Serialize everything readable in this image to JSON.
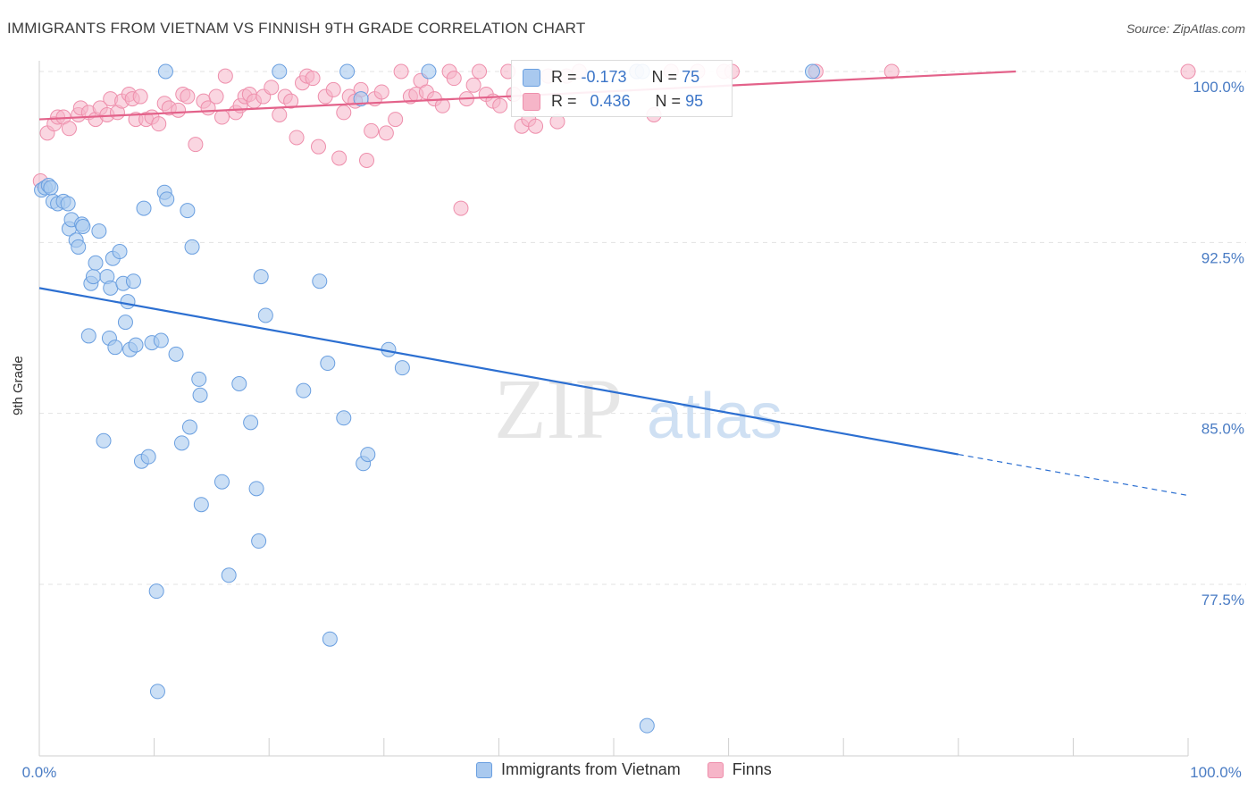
{
  "title": "IMMIGRANTS FROM VIETNAM VS FINNISH 9TH GRADE CORRELATION CHART",
  "source": "Source: ZipAtlas.com",
  "watermark": {
    "zip": "ZIP",
    "atlas": "atlas"
  },
  "colors": {
    "blue_fill": "#a9c9ef",
    "blue_stroke": "#6a9fe0",
    "blue_line": "#2c6fd1",
    "pink_fill": "#f6b5c8",
    "pink_stroke": "#ee8fac",
    "pink_line": "#e3628a",
    "tick_label": "#4a7cc4",
    "grid": "#e6e6e6"
  },
  "legend_inset": {
    "rows": [
      {
        "r_label": "R =",
        "r_value": "-0.173",
        "n_label": "N =",
        "n_value": "75"
      },
      {
        "r_label": "R =",
        "r_value": "0.436",
        "n_label": "N =",
        "n_value": "95"
      }
    ]
  },
  "legend_bottom": {
    "blue": "Immigrants from Vietnam",
    "pink": "Finns"
  },
  "chart_data": {
    "type": "scatter",
    "title": "IMMIGRANTS FROM VIETNAM VS FINNISH 9TH GRADE CORRELATION CHART",
    "xlabel": "",
    "ylabel": "9th Grade",
    "xlim": [
      0,
      100
    ],
    "ylim": [
      70.7,
      100.7
    ],
    "x_tick_labels": [
      "0.0%",
      "100.0%"
    ],
    "y_ticks": [
      {
        "value": 100.0,
        "label": "100.0%"
      },
      {
        "value": 92.5,
        "label": "92.5%"
      },
      {
        "value": 85.0,
        "label": "85.0%"
      },
      {
        "value": 77.5,
        "label": "77.5%"
      }
    ],
    "grid": true,
    "legend_position": "top-center",
    "series": [
      {
        "name": "Immigrants from Vietnam",
        "color": "#a9c9ef",
        "trend": {
          "x": [
            0,
            80
          ],
          "y": [
            90.5,
            83.2
          ],
          "dashed_to": [
            100,
            81.4
          ]
        },
        "points": [
          [
            0.2,
            94.8
          ],
          [
            0.5,
            94.9
          ],
          [
            0.8,
            95.0
          ],
          [
            1.0,
            94.9
          ],
          [
            1.2,
            94.3
          ],
          [
            1.6,
            94.2
          ],
          [
            2.1,
            94.3
          ],
          [
            2.5,
            94.2
          ],
          [
            2.6,
            93.1
          ],
          [
            2.8,
            93.5
          ],
          [
            3.2,
            92.6
          ],
          [
            3.4,
            92.3
          ],
          [
            3.7,
            93.3
          ],
          [
            3.8,
            93.2
          ],
          [
            4.3,
            88.4
          ],
          [
            4.5,
            90.7
          ],
          [
            4.7,
            91.0
          ],
          [
            4.9,
            91.6
          ],
          [
            5.2,
            93.0
          ],
          [
            5.6,
            83.8
          ],
          [
            5.9,
            91.0
          ],
          [
            6.1,
            88.3
          ],
          [
            6.2,
            90.5
          ],
          [
            6.4,
            91.8
          ],
          [
            6.6,
            87.9
          ],
          [
            7.0,
            92.1
          ],
          [
            7.3,
            90.7
          ],
          [
            7.5,
            89.0
          ],
          [
            7.7,
            89.9
          ],
          [
            7.9,
            87.8
          ],
          [
            8.2,
            90.8
          ],
          [
            8.4,
            88.0
          ],
          [
            8.9,
            82.9
          ],
          [
            9.1,
            94.0
          ],
          [
            9.5,
            83.1
          ],
          [
            9.8,
            88.1
          ],
          [
            10.2,
            77.2
          ],
          [
            10.3,
            72.8
          ],
          [
            10.6,
            88.2
          ],
          [
            10.9,
            94.7
          ],
          [
            11.0,
            100.0
          ],
          [
            11.1,
            94.4
          ],
          [
            11.9,
            87.6
          ],
          [
            12.4,
            83.7
          ],
          [
            12.9,
            93.9
          ],
          [
            13.1,
            84.4
          ],
          [
            13.3,
            92.3
          ],
          [
            13.9,
            86.5
          ],
          [
            14.0,
            85.8
          ],
          [
            14.1,
            81.0
          ],
          [
            15.9,
            82.0
          ],
          [
            16.5,
            77.9
          ],
          [
            17.4,
            86.3
          ],
          [
            18.4,
            84.6
          ],
          [
            18.9,
            81.7
          ],
          [
            19.1,
            79.4
          ],
          [
            19.3,
            91.0
          ],
          [
            19.7,
            89.3
          ],
          [
            20.9,
            100.0
          ],
          [
            23.0,
            86.0
          ],
          [
            24.4,
            90.8
          ],
          [
            25.1,
            87.2
          ],
          [
            25.3,
            75.1
          ],
          [
            26.5,
            84.8
          ],
          [
            26.8,
            100.0
          ],
          [
            28.0,
            98.8
          ],
          [
            28.2,
            82.8
          ],
          [
            28.6,
            83.2
          ],
          [
            30.4,
            87.8
          ],
          [
            31.6,
            87.0
          ],
          [
            33.9,
            100.0
          ],
          [
            52.0,
            100.0
          ],
          [
            52.5,
            100.0
          ],
          [
            67.3,
            100.0
          ],
          [
            52.9,
            71.3
          ]
        ]
      },
      {
        "name": "Finns",
        "color": "#f6b5c8",
        "trend": {
          "x": [
            0,
            85
          ],
          "y": [
            97.9,
            100.0
          ]
        },
        "points": [
          [
            0.1,
            95.2
          ],
          [
            0.7,
            97.3
          ],
          [
            1.3,
            97.7
          ],
          [
            1.6,
            98.0
          ],
          [
            2.1,
            98.0
          ],
          [
            2.6,
            97.5
          ],
          [
            3.4,
            98.1
          ],
          [
            3.6,
            98.4
          ],
          [
            4.3,
            98.2
          ],
          [
            4.9,
            97.9
          ],
          [
            5.3,
            98.4
          ],
          [
            5.9,
            98.1
          ],
          [
            6.2,
            98.8
          ],
          [
            6.8,
            98.2
          ],
          [
            7.2,
            98.7
          ],
          [
            7.8,
            99.0
          ],
          [
            8.1,
            98.8
          ],
          [
            8.4,
            97.9
          ],
          [
            8.8,
            98.9
          ],
          [
            9.3,
            97.9
          ],
          [
            9.8,
            98.0
          ],
          [
            10.4,
            97.7
          ],
          [
            10.9,
            98.6
          ],
          [
            11.3,
            98.4
          ],
          [
            12.1,
            98.3
          ],
          [
            12.5,
            99.0
          ],
          [
            12.9,
            98.9
          ],
          [
            13.6,
            96.8
          ],
          [
            14.3,
            98.7
          ],
          [
            14.7,
            98.4
          ],
          [
            15.4,
            98.9
          ],
          [
            15.9,
            98.0
          ],
          [
            16.2,
            99.8
          ],
          [
            17.1,
            98.2
          ],
          [
            17.5,
            98.5
          ],
          [
            17.9,
            98.9
          ],
          [
            18.3,
            99.0
          ],
          [
            18.7,
            98.7
          ],
          [
            19.5,
            98.9
          ],
          [
            20.2,
            99.3
          ],
          [
            20.9,
            98.1
          ],
          [
            21.4,
            98.9
          ],
          [
            21.9,
            98.7
          ],
          [
            22.4,
            97.1
          ],
          [
            22.9,
            99.5
          ],
          [
            23.3,
            99.8
          ],
          [
            23.8,
            99.7
          ],
          [
            24.3,
            96.7
          ],
          [
            24.9,
            98.9
          ],
          [
            25.6,
            99.2
          ],
          [
            26.1,
            96.2
          ],
          [
            26.5,
            98.2
          ],
          [
            27.0,
            98.9
          ],
          [
            27.5,
            98.7
          ],
          [
            28.0,
            99.2
          ],
          [
            28.5,
            96.1
          ],
          [
            28.9,
            97.4
          ],
          [
            29.2,
            98.8
          ],
          [
            29.8,
            99.1
          ],
          [
            30.2,
            97.3
          ],
          [
            31.0,
            97.9
          ],
          [
            31.5,
            100.0
          ],
          [
            32.3,
            98.9
          ],
          [
            32.8,
            99.0
          ],
          [
            33.2,
            99.6
          ],
          [
            33.7,
            99.1
          ],
          [
            34.4,
            98.8
          ],
          [
            35.1,
            98.5
          ],
          [
            35.7,
            100.0
          ],
          [
            36.1,
            99.7
          ],
          [
            36.7,
            94.0
          ],
          [
            37.2,
            98.8
          ],
          [
            37.8,
            99.4
          ],
          [
            38.3,
            100.0
          ],
          [
            38.9,
            99.0
          ],
          [
            39.5,
            98.7
          ],
          [
            40.1,
            98.5
          ],
          [
            40.8,
            100.0
          ],
          [
            41.3,
            99.0
          ],
          [
            42.0,
            97.6
          ],
          [
            42.6,
            97.9
          ],
          [
            43.2,
            97.6
          ],
          [
            44.3,
            99.8
          ],
          [
            45.1,
            97.8
          ],
          [
            45.9,
            99.8
          ],
          [
            47.0,
            100.0
          ],
          [
            52.0,
            100.0
          ],
          [
            53.5,
            98.1
          ],
          [
            57.3,
            100.0
          ],
          [
            59.6,
            100.0
          ],
          [
            60.3,
            100.0
          ],
          [
            67.6,
            100.0
          ],
          [
            74.2,
            100.0
          ],
          [
            100.0,
            100.0
          ],
          [
            55.0,
            100.0
          ]
        ]
      }
    ]
  }
}
